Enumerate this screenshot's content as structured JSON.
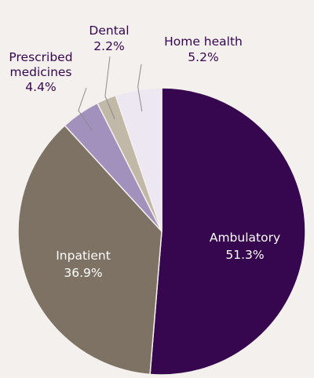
{
  "chart_data": {
    "type": "pie",
    "title": "",
    "start": "12 o'clock",
    "direction": "clockwise",
    "slices": [
      {
        "name": "Ambulatory",
        "value": 51.3,
        "value_label": "51.3%",
        "color": "#36064f",
        "label_color": "#ffffff"
      },
      {
        "name": "Inpatient",
        "value": 36.9,
        "value_label": "36.9%",
        "color": "#7d7263",
        "label_color": "#ffffff"
      },
      {
        "name": "Prescribed medicines",
        "name_lines": [
          "Prescribed",
          "medicines"
        ],
        "value": 4.4,
        "value_label": "4.4%",
        "color": "#a391bd",
        "label_color": "#36064f"
      },
      {
        "name": "Dental",
        "value": 2.2,
        "value_label": "2.2%",
        "color": "#c2b8a8",
        "label_color": "#36064f"
      },
      {
        "name": "Home health",
        "value": 5.2,
        "value_label": "5.2%",
        "color": "#ede7f2",
        "label_color": "#36064f"
      }
    ]
  }
}
